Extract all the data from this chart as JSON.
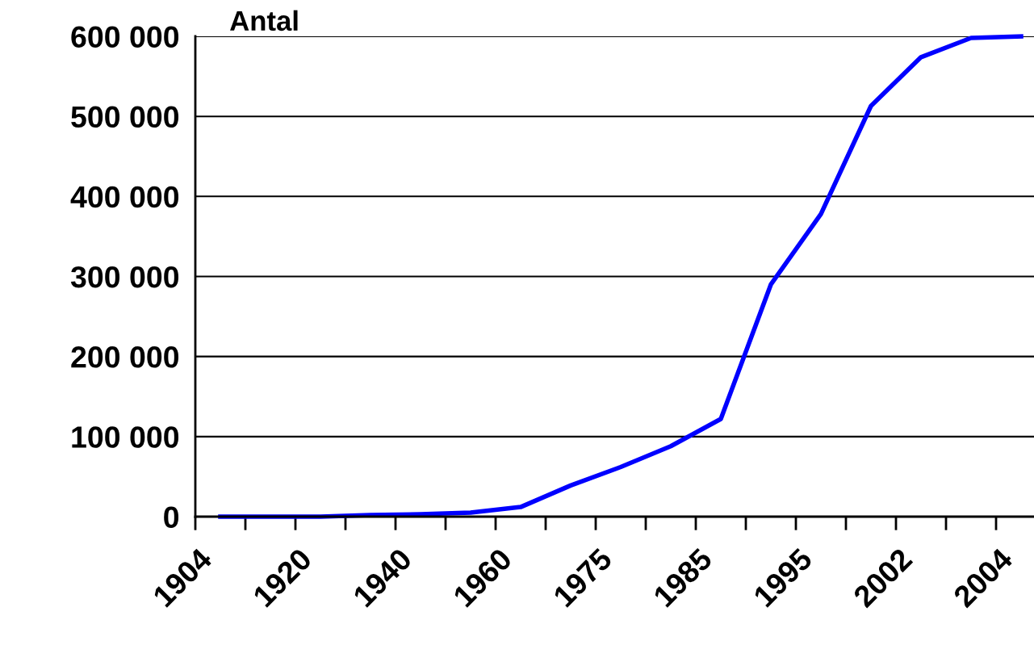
{
  "chart_data": {
    "type": "line",
    "ylabel": "Antal",
    "categories": [
      "1904",
      null,
      "1920",
      null,
      "1940",
      null,
      "1960",
      null,
      "1975",
      null,
      "1985",
      null,
      "1995",
      null,
      "2002",
      null,
      "2004"
    ],
    "series": [
      {
        "color": "#0000ff",
        "values": [
          0,
          0,
          0,
          2000,
          3000,
          5000,
          12000,
          39000,
          62000,
          88000,
          122000,
          290000,
          378000,
          513000,
          574000,
          598000,
          600000
        ]
      }
    ],
    "ylim": [
      0,
      600000
    ],
    "yticks": [
      0,
      {
        "value": 100000,
        "label": "100 000"
      },
      {
        "value": 200000,
        "label": "200 000"
      },
      {
        "value": 300000,
        "label": "300 000"
      },
      {
        "value": 400000,
        "label": "400 000"
      },
      {
        "value": 500000,
        "label": "500 000"
      },
      {
        "value": 600000,
        "label": "600 000"
      }
    ],
    "grid": "y",
    "legend": false,
    "marker": "none",
    "line_style": "solid"
  }
}
